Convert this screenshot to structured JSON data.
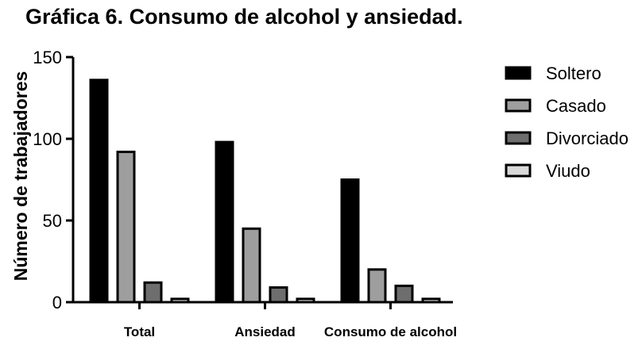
{
  "chart_data": {
    "type": "bar",
    "title": "Gráfica 6. Consumo de alcohol y ansiedad.",
    "xlabel": "",
    "ylabel": "Número de trabajadores",
    "categories": [
      "Total",
      "Ansiedad",
      "Consumo de alcohol"
    ],
    "series": [
      {
        "name": "Soltero",
        "color": "#000000",
        "values": [
          136,
          98,
          75
        ]
      },
      {
        "name": "Casado",
        "color": "#9e9e9e",
        "values": [
          92,
          45,
          20
        ]
      },
      {
        "name": "Divorciado",
        "color": "#6e6e6e",
        "values": [
          12,
          9,
          10
        ]
      },
      {
        "name": "Viudo",
        "color": "#d9d9d9",
        "values": [
          2,
          2,
          2
        ]
      }
    ],
    "ylim": [
      0,
      150
    ],
    "yticks": [
      0,
      50,
      100,
      150
    ],
    "grid": false,
    "legend_position": "right"
  }
}
